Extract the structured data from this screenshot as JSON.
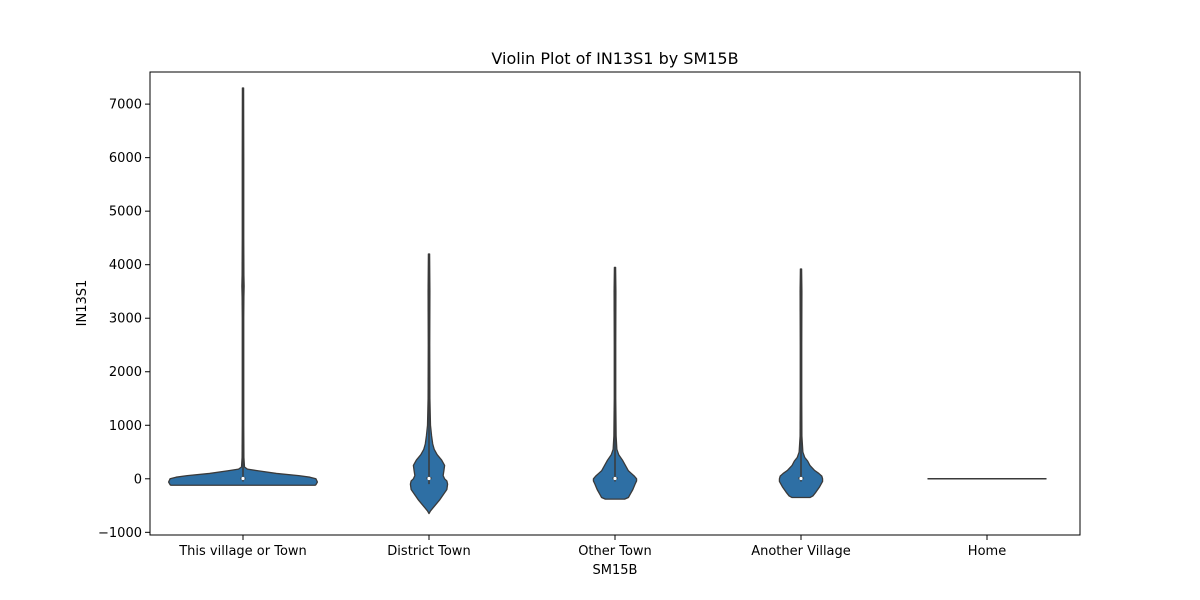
{
  "chart_data": {
    "type": "violin",
    "title": "Violin Plot of IN13S1 by SM15B",
    "xlabel": "SM15B",
    "ylabel": "IN13S1",
    "ylim": [
      -1050,
      7600
    ],
    "yticks": [
      -1000,
      0,
      1000,
      2000,
      3000,
      4000,
      5000,
      6000,
      7000
    ],
    "ytick_labels": [
      "−1000",
      "0",
      "1000",
      "2000",
      "3000",
      "4000",
      "5000",
      "6000",
      "7000"
    ],
    "color": "#2e6fa4",
    "edge_color": "#3a3a3a",
    "categories": [
      "This village or Town",
      "District Town",
      "Other Town",
      "Another Village",
      "Home"
    ],
    "violins": [
      {
        "name": "This village or Town",
        "profile": [
          [
            -120,
            0.97
          ],
          [
            -110,
            0.98
          ],
          [
            -60,
            1.0
          ],
          [
            0,
            0.98
          ],
          [
            30,
            0.9
          ],
          [
            60,
            0.75
          ],
          [
            100,
            0.45
          ],
          [
            150,
            0.2
          ],
          [
            180,
            0.06
          ],
          [
            220,
            0.02
          ],
          [
            400,
            0.012
          ],
          [
            1000,
            0.01
          ],
          [
            2000,
            0.01
          ],
          [
            3000,
            0.01
          ],
          [
            3400,
            0.012
          ],
          [
            3600,
            0.015
          ],
          [
            3800,
            0.012
          ],
          [
            4500,
            0.01
          ],
          [
            6000,
            0.01
          ],
          [
            7300,
            0.008
          ]
        ],
        "whisker": [
          -50,
          7300
        ],
        "box": [
          -5,
          25
        ],
        "median": 5
      },
      {
        "name": "District Town",
        "profile": [
          [
            -650,
            0.0
          ],
          [
            -600,
            0.02
          ],
          [
            -500,
            0.08
          ],
          [
            -400,
            0.14
          ],
          [
            -300,
            0.19
          ],
          [
            -200,
            0.24
          ],
          [
            -100,
            0.25
          ],
          [
            -40,
            0.24
          ],
          [
            0,
            0.21
          ],
          [
            60,
            0.19
          ],
          [
            150,
            0.2
          ],
          [
            250,
            0.21
          ],
          [
            350,
            0.17
          ],
          [
            450,
            0.11
          ],
          [
            550,
            0.07
          ],
          [
            650,
            0.05
          ],
          [
            800,
            0.035
          ],
          [
            1000,
            0.02
          ],
          [
            1500,
            0.012
          ],
          [
            2500,
            0.01
          ],
          [
            3500,
            0.012
          ],
          [
            4200,
            0.008
          ]
        ],
        "whisker": [
          -100,
          4200
        ],
        "box": [
          -10,
          30
        ],
        "median": 5
      },
      {
        "name": "Other Town",
        "profile": [
          [
            -380,
            0.13
          ],
          [
            -350,
            0.18
          ],
          [
            -300,
            0.2
          ],
          [
            -200,
            0.24
          ],
          [
            -100,
            0.27
          ],
          [
            -40,
            0.29
          ],
          [
            0,
            0.29
          ],
          [
            50,
            0.26
          ],
          [
            100,
            0.22
          ],
          [
            150,
            0.18
          ],
          [
            250,
            0.14
          ],
          [
            350,
            0.1
          ],
          [
            450,
            0.05
          ],
          [
            550,
            0.025
          ],
          [
            800,
            0.015
          ],
          [
            1500,
            0.01
          ],
          [
            2500,
            0.01
          ],
          [
            3500,
            0.012
          ],
          [
            3950,
            0.008
          ]
        ],
        "whisker": [
          -50,
          3950
        ],
        "box": [
          -10,
          30
        ],
        "median": 5
      },
      {
        "name": "Another Village",
        "profile": [
          [
            -350,
            0.12
          ],
          [
            -320,
            0.16
          ],
          [
            -250,
            0.2
          ],
          [
            -150,
            0.25
          ],
          [
            -50,
            0.29
          ],
          [
            0,
            0.29
          ],
          [
            50,
            0.28
          ],
          [
            100,
            0.24
          ],
          [
            160,
            0.18
          ],
          [
            250,
            0.12
          ],
          [
            330,
            0.09
          ],
          [
            400,
            0.05
          ],
          [
            500,
            0.025
          ],
          [
            800,
            0.012
          ],
          [
            1500,
            0.01
          ],
          [
            2500,
            0.01
          ],
          [
            3500,
            0.012
          ],
          [
            3920,
            0.008
          ]
        ],
        "whisker": [
          -50,
          3920
        ],
        "box": [
          -10,
          30
        ],
        "median": 5
      },
      {
        "name": "Home",
        "profile": [
          [
            0,
            0.8
          ]
        ],
        "whisker": [
          0,
          0
        ],
        "box": [
          0,
          0
        ],
        "median": 0
      }
    ]
  }
}
